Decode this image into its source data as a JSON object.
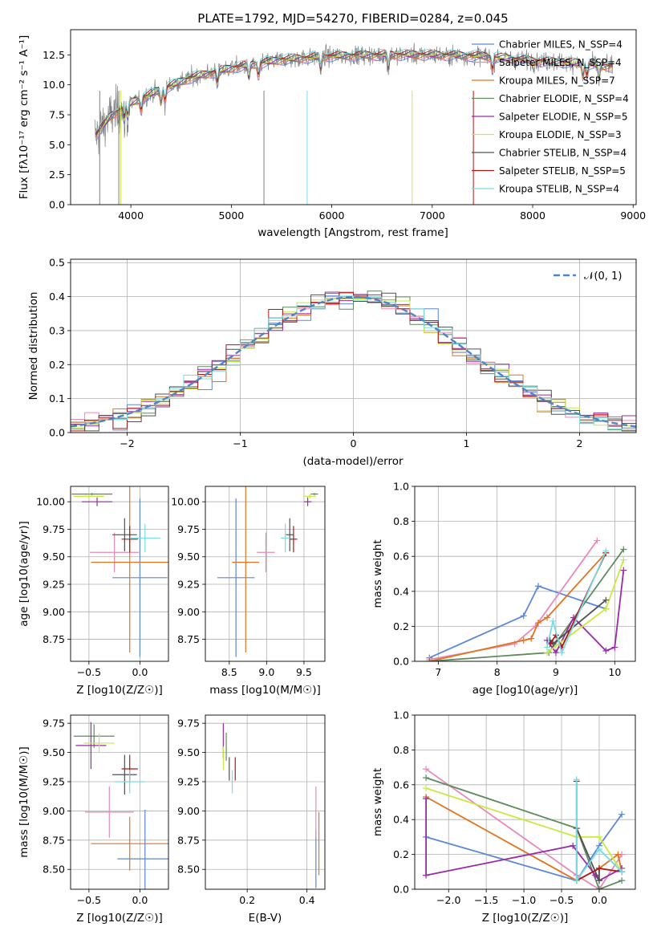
{
  "colors": [
    "#5b87d8",
    "#e889b8",
    "#e3721f",
    "#5e8a5e",
    "#9a2aa8",
    "#c8ea40",
    "#505050",
    "#b01818",
    "#78dde2"
  ],
  "chart_data": [
    {
      "type": "line",
      "title": "PLATE=1792, MJD=54270, FIBERID=0284, z=0.045",
      "xlabel": "wavelength [Angstrom, rest frame]",
      "ylabel": "Flux [fλ10⁻¹⁷ erg cm⁻² s⁻¹ A⁻¹]",
      "xlim": [
        3400,
        9030
      ],
      "ylim": [
        0,
        14.6
      ],
      "xticks": [
        "4000",
        "5000",
        "6000",
        "7000",
        "8000",
        "9000"
      ],
      "yticks": [
        "0.0",
        "2.5",
        "5.0",
        "7.5",
        "10.0",
        "12.5"
      ],
      "grid": false,
      "legend": "upper-right",
      "continuum": {
        "x": [
          3650,
          3800,
          4000,
          4300,
          4600,
          5000,
          5500,
          6000,
          6500,
          7000,
          7500,
          8000,
          8500,
          8800
        ],
        "y": [
          5.8,
          7.4,
          8.5,
          9.6,
          10.6,
          11.4,
          12.1,
          12.4,
          12.5,
          12.5,
          12.4,
          12.0,
          11.8,
          11.5
        ]
      },
      "legend_entries": [
        "Chabrier MILES, N_SSP=4",
        "Salpeter MILES, N_SSP=4",
        "Kroupa MILES, N_SSP=7",
        "Chabrier ELODIE, N_SSP=4",
        "Salpeter ELODIE, N_SSP=5",
        "Kroupa ELODIE, N_SSP=3",
        "Chabrier STELIB, N_SSP=4",
        "Salpeter STELIB, N_SSP=5",
        "Kroupa STELIB, N_SSP=4"
      ]
    },
    {
      "type": "line",
      "xlabel": "(data-model)/error",
      "ylabel": "Normed distribution",
      "xlim": [
        -2.5,
        2.5
      ],
      "ylim": [
        0,
        0.51
      ],
      "xticks": [
        "−2",
        "−1",
        "0",
        "1",
        "2"
      ],
      "yticks": [
        "0.0",
        "0.1",
        "0.2",
        "0.3",
        "0.4",
        "0.5"
      ],
      "grid": true,
      "legend": "upper-right",
      "legend_label": "𝒩(0, 1)",
      "hist_bins": 40
    },
    {
      "type": "scatter",
      "xlabel": "Z [log10(Z/Z☉)]",
      "ylabel": "age  [log10(age/yr)]",
      "xlim": [
        -0.68,
        0.28
      ],
      "ylim": [
        8.55,
        10.14
      ],
      "xticks": [
        "−0.5",
        "0.0"
      ],
      "yticks": [
        "8.75",
        "9.00",
        "9.25",
        "9.50",
        "9.75",
        "10.00"
      ],
      "grid": true,
      "points": [
        {
          "x": 0.0,
          "y": 9.31,
          "xerr": 0.27,
          "yerr": 0.72
        },
        {
          "x": -0.25,
          "y": 9.54,
          "xerr": 0.24,
          "yerr": 0.18
        },
        {
          "x": -0.1,
          "y": 9.45,
          "xerr": 0.38,
          "yerr": 0.82
        },
        {
          "x": -0.47,
          "y": 10.07,
          "xerr": 0.2,
          "yerr": 0.01
        },
        {
          "x": -0.42,
          "y": 10.0,
          "xerr": 0.15,
          "yerr": 0.04
        },
        {
          "x": -0.5,
          "y": 10.05,
          "xerr": 0.15,
          "yerr": 0.02
        },
        {
          "x": -0.15,
          "y": 9.7,
          "xerr": 0.12,
          "yerr": 0.15
        },
        {
          "x": -0.1,
          "y": 9.66,
          "xerr": 0.08,
          "yerr": 0.12
        },
        {
          "x": 0.05,
          "y": 9.67,
          "xerr": 0.15,
          "yerr": 0.13
        }
      ]
    },
    {
      "type": "scatter",
      "xlabel": "mass [log10(M/M☉)]",
      "xlim": [
        8.18,
        9.78
      ],
      "ylim": [
        8.55,
        10.14
      ],
      "xticks": [
        "8.5",
        "9.0",
        "9.5"
      ],
      "yticks": [
        "8.75",
        "9.00",
        "9.25",
        "9.50",
        "9.75",
        "10.00"
      ],
      "grid": true,
      "points": [
        {
          "x": 8.59,
          "y": 9.31,
          "xerr": 0.25,
          "yerr": 0.72
        },
        {
          "x": 8.99,
          "y": 9.54,
          "xerr": 0.12,
          "yerr": 0.18
        },
        {
          "x": 8.72,
          "y": 9.45,
          "xerr": 0.18,
          "yerr": 0.82
        },
        {
          "x": 9.64,
          "y": 10.07,
          "xerr": 0.05,
          "yerr": 0.01
        },
        {
          "x": 9.55,
          "y": 10.0,
          "xerr": 0.05,
          "yerr": 0.04
        },
        {
          "x": 9.58,
          "y": 10.05,
          "xerr": 0.08,
          "yerr": 0.02
        },
        {
          "x": 9.31,
          "y": 9.7,
          "xerr": 0.05,
          "yerr": 0.15
        },
        {
          "x": 9.36,
          "y": 9.66,
          "xerr": 0.05,
          "yerr": 0.12
        },
        {
          "x": 9.25,
          "y": 9.67,
          "xerr": 0.06,
          "yerr": 0.13
        }
      ]
    },
    {
      "type": "line",
      "xlabel": "age  [log10(age/yr)]",
      "ylabel": "mass weight",
      "xlim": [
        6.6,
        10.35
      ],
      "ylim": [
        0,
        1.0
      ],
      "xticks": [
        "7",
        "8",
        "9",
        "10"
      ],
      "yticks": [
        "0.0",
        "0.2",
        "0.4",
        "0.6",
        "0.8",
        "1.0"
      ],
      "grid": true,
      "series": [
        {
          "x": [
            6.85,
            8.45,
            8.7,
            9.85
          ],
          "y": [
            0.02,
            0.26,
            0.43,
            0.3
          ]
        },
        {
          "x": [
            6.85,
            8.3,
            8.65,
            9.7
          ],
          "y": [
            0.01,
            0.1,
            0.2,
            0.69
          ]
        },
        {
          "x": [
            6.85,
            8.45,
            8.58,
            8.7,
            8.85,
            9.85
          ],
          "y": [
            0.0,
            0.12,
            0.13,
            0.22,
            0.25,
            0.62
          ]
        },
        {
          "x": [
            6.85,
            8.88,
            10.15
          ],
          "y": [
            0.0,
            0.05,
            0.64
          ]
        },
        {
          "x": [
            8.85,
            9.0,
            9.3,
            9.85,
            10.0,
            10.15
          ],
          "y": [
            0.12,
            0.05,
            0.25,
            0.06,
            0.08,
            0.52
          ]
        },
        {
          "x": [
            8.85,
            9.85,
            10.15
          ],
          "y": [
            0.05,
            0.3,
            0.58
          ]
        },
        {
          "x": [
            8.9,
            8.95,
            9.85
          ],
          "y": [
            0.12,
            0.1,
            0.35
          ]
        },
        {
          "x": [
            8.9,
            9.0,
            9.1,
            9.85
          ],
          "y": [
            0.1,
            0.15,
            0.08,
            0.62
          ]
        },
        {
          "x": [
            8.85,
            8.95,
            9.1,
            9.85
          ],
          "y": [
            0.08,
            0.23,
            0.05,
            0.63
          ]
        }
      ]
    },
    {
      "type": "scatter",
      "xlabel": "Z [log10(Z/Z☉)]",
      "ylabel": "mass [log10(M/M☉)]",
      "xlim": [
        -0.68,
        0.28
      ],
      "ylim": [
        8.33,
        9.82
      ],
      "xticks": [
        "−0.5",
        "0.0"
      ],
      "yticks": [
        "8.50",
        "8.75",
        "9.00",
        "9.25",
        "9.50",
        "9.75"
      ],
      "grid": true,
      "points": [
        {
          "x": 0.05,
          "y": 8.59,
          "xerr": 0.27,
          "yerr": 0.42
        },
        {
          "x": -0.3,
          "y": 8.99,
          "xerr": 0.24,
          "yerr": 0.22
        },
        {
          "x": -0.1,
          "y": 8.72,
          "xerr": 0.38,
          "yerr": 0.23
        },
        {
          "x": -0.45,
          "y": 9.64,
          "xerr": 0.2,
          "yerr": 0.1
        },
        {
          "x": -0.48,
          "y": 9.56,
          "xerr": 0.15,
          "yerr": 0.2
        },
        {
          "x": -0.4,
          "y": 9.58,
          "xerr": 0.15,
          "yerr": 0.08
        },
        {
          "x": -0.15,
          "y": 9.31,
          "xerr": 0.12,
          "yerr": 0.17
        },
        {
          "x": -0.1,
          "y": 9.36,
          "xerr": 0.08,
          "yerr": 0.12
        },
        {
          "x": -0.1,
          "y": 9.25,
          "xerr": 0.15,
          "yerr": 0.1
        }
      ]
    },
    {
      "type": "scatter",
      "xlabel": "E(B-V)",
      "xlim": [
        0.06,
        0.46
      ],
      "ylim": [
        8.33,
        9.82
      ],
      "xticks": [
        "0.2",
        "0.4"
      ],
      "yticks": [
        "8.50",
        "8.75",
        "9.00",
        "9.25",
        "9.50",
        "9.75"
      ],
      "grid": true,
      "points": [
        {
          "x": 0.43,
          "y": 8.59,
          "xerr": 0,
          "yerr": 0.25
        },
        {
          "x": 0.43,
          "y": 8.99,
          "xerr": 0,
          "yerr": 0.22
        },
        {
          "x": 0.44,
          "y": 8.72,
          "xerr": 0,
          "yerr": 0.27
        },
        {
          "x": 0.13,
          "y": 9.55,
          "xerr": 0,
          "yerr": 0.12
        },
        {
          "x": 0.12,
          "y": 9.6,
          "xerr": 0,
          "yerr": 0.15
        },
        {
          "x": 0.12,
          "y": 9.45,
          "xerr": 0,
          "yerr": 0.1
        },
        {
          "x": 0.14,
          "y": 9.36,
          "xerr": 0,
          "yerr": 0.1
        },
        {
          "x": 0.16,
          "y": 9.36,
          "xerr": 0,
          "yerr": 0.1
        },
        {
          "x": 0.15,
          "y": 9.25,
          "xerr": 0,
          "yerr": 0.1
        }
      ]
    },
    {
      "type": "line",
      "xlabel": "Z [log10(Z/Z☉)]",
      "ylabel": "mass weight",
      "xlim": [
        -2.45,
        0.48
      ],
      "ylim": [
        0,
        1.0
      ],
      "xticks": [
        "−2.0",
        "−1.5",
        "−1.0",
        "−0.5",
        "0.0"
      ],
      "yticks": [
        "0.0",
        "0.2",
        "0.4",
        "0.6",
        "0.8",
        "1.0"
      ],
      "grid": true,
      "series": [
        {
          "x": [
            -2.3,
            -0.3,
            0.0,
            0.3
          ],
          "y": [
            0.3,
            0.05,
            0.25,
            0.43
          ]
        },
        {
          "x": [
            -2.3,
            -0.3,
            0.0,
            0.3
          ],
          "y": [
            0.69,
            0.08,
            0.0,
            0.2
          ]
        },
        {
          "x": [
            -2.3,
            -0.3,
            0.0,
            0.25,
            0.3
          ],
          "y": [
            0.53,
            0.05,
            0.12,
            0.2,
            0.1
          ]
        },
        {
          "x": [
            -2.3,
            -0.3,
            0.0,
            0.3
          ],
          "y": [
            0.64,
            0.35,
            0.0,
            0.05
          ]
        },
        {
          "x": [
            -2.3,
            -2.3,
            -0.35,
            -0.05,
            0.0,
            0.3
          ],
          "y": [
            0.52,
            0.08,
            0.25,
            0.08,
            0.05,
            0.12
          ]
        },
        {
          "x": [
            -2.3,
            -0.3,
            0.0,
            0.3
          ],
          "y": [
            0.58,
            0.3,
            0.3,
            0.1
          ]
        },
        {
          "x": [
            -0.3,
            0.0,
            0.0
          ],
          "y": [
            0.35,
            0.05,
            0.12
          ]
        },
        {
          "x": [
            -0.3,
            -0.3,
            0.0,
            0.3
          ],
          "y": [
            0.62,
            0.05,
            0.12,
            0.1
          ]
        },
        {
          "x": [
            -0.3,
            -0.3,
            0.0,
            0.3
          ],
          "y": [
            0.63,
            0.05,
            0.23,
            0.1
          ]
        }
      ]
    }
  ]
}
